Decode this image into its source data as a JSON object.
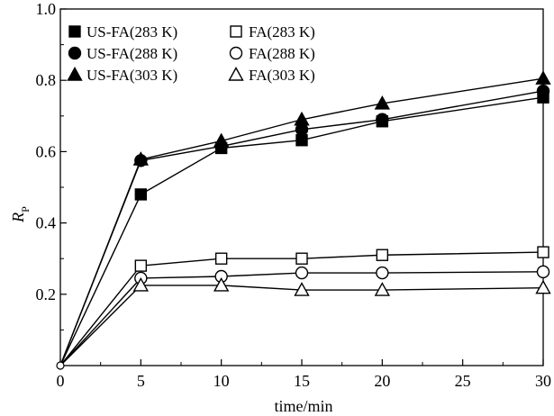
{
  "chart_data": {
    "type": "line",
    "title": "",
    "xlabel": "time/min",
    "ylabel": "R",
    "ylabel_sub": "P",
    "xlim": [
      0,
      30
    ],
    "ylim": [
      0,
      1.0
    ],
    "x_ticks": [
      0,
      5,
      10,
      15,
      20,
      25,
      30
    ],
    "y_ticks": [
      0.2,
      0.4,
      0.6,
      0.8,
      1.0
    ],
    "x_tick_labels": [
      "0",
      "5",
      "10",
      "15",
      "20",
      "25",
      "30"
    ],
    "y_tick_labels": [
      "0.2",
      "0.4",
      "0.6",
      "0.8",
      "1.0"
    ],
    "grid": false,
    "legend": {
      "placement": "top-left",
      "rows": [
        [
          {
            "marker": "square",
            "filled": true,
            "label": "US-FA(283 K)"
          },
          {
            "marker": "square",
            "filled": false,
            "label": "FA(283 K)"
          }
        ],
        [
          {
            "marker": "circle",
            "filled": true,
            "label": "US-FA(288 K)"
          },
          {
            "marker": "circle",
            "filled": false,
            "label": "FA(288 K)"
          }
        ],
        [
          {
            "marker": "triangle",
            "filled": true,
            "label": "US-FA(303 K)"
          },
          {
            "marker": "triangle",
            "filled": false,
            "label": "FA(303 K)"
          }
        ]
      ]
    },
    "x": [
      0,
      5,
      10,
      15,
      20,
      30
    ],
    "series": [
      {
        "name": "US-FA(283 K)",
        "marker": "square",
        "filled": true,
        "values": [
          0,
          0.48,
          0.61,
          0.632,
          0.685,
          0.752
        ]
      },
      {
        "name": "FA(283 K)",
        "marker": "square",
        "filled": false,
        "values": [
          0,
          0.28,
          0.3,
          0.3,
          0.31,
          0.318
        ]
      },
      {
        "name": "US-FA(288 K)",
        "marker": "circle",
        "filled": true,
        "values": [
          0,
          0.575,
          0.615,
          0.662,
          0.69,
          0.77
        ]
      },
      {
        "name": "FA(288 K)",
        "marker": "circle",
        "filled": false,
        "values": [
          0,
          0.245,
          0.25,
          0.26,
          0.26,
          0.263
        ]
      },
      {
        "name": "US-FA(303 K)",
        "marker": "triangle",
        "filled": true,
        "values": [
          0,
          0.578,
          0.63,
          0.69,
          0.735,
          0.805
        ]
      },
      {
        "name": "FA(303 K)",
        "marker": "triangle",
        "filled": false,
        "values": [
          0,
          0.225,
          0.225,
          0.212,
          0.212,
          0.218
        ]
      }
    ]
  }
}
